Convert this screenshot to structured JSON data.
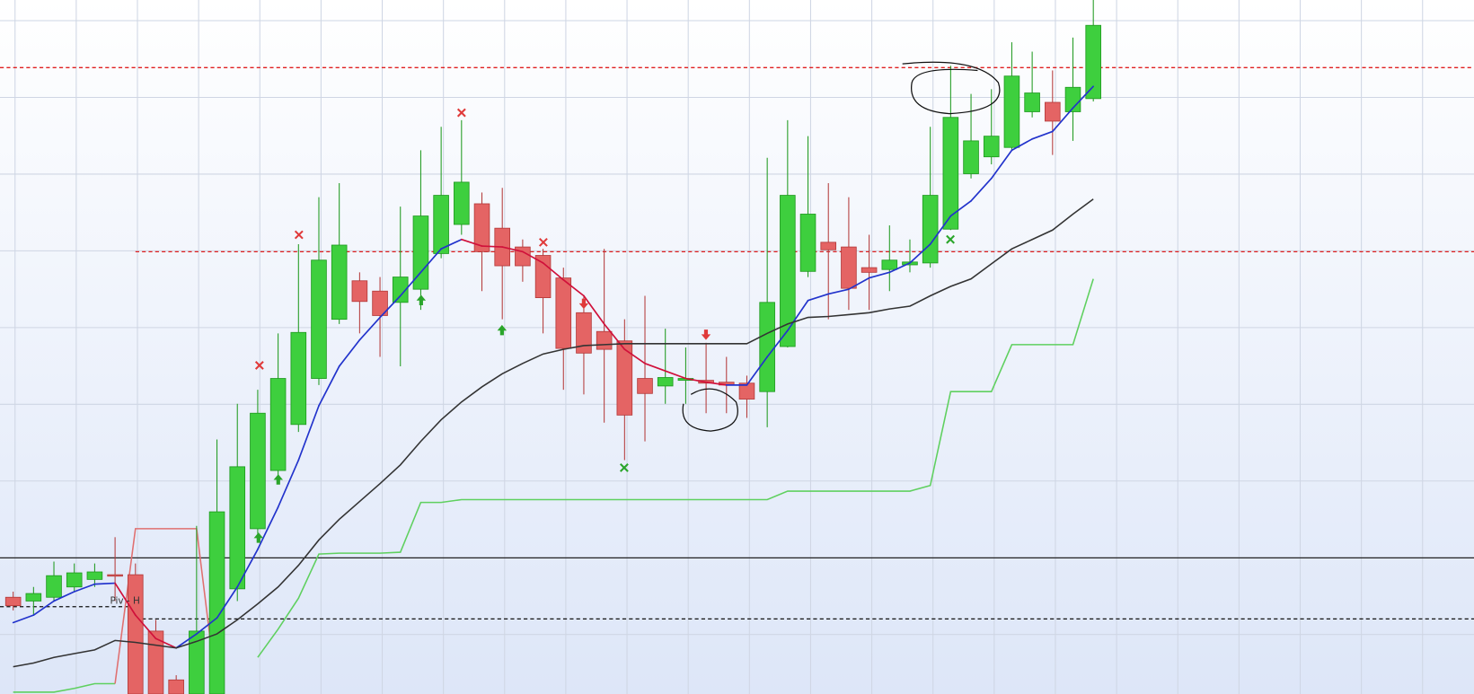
{
  "chart_data": {
    "type": "candlestick",
    "annotation": "Piv - H",
    "ylim": [
      0,
      739
    ],
    "up_color": "#3ecf3e",
    "up_edge": "#1f9a1f",
    "down_color": "#e46464",
    "down_edge": "#b43a3a",
    "grid": true,
    "open": [
      103,
      99,
      103,
      114,
      122,
      127,
      127,
      67,
      15,
      0,
      0,
      112,
      176,
      238,
      287,
      336,
      399,
      440,
      429,
      417,
      431,
      469,
      500,
      522,
      496,
      476,
      467,
      443,
      406,
      386,
      376,
      336,
      328,
      334,
      334,
      332,
      331,
      322,
      370,
      450,
      481,
      476,
      454,
      452,
      457,
      459,
      495,
      554,
      572,
      582,
      620,
      630,
      620,
      634
    ],
    "high": [
      109,
      114,
      141,
      139,
      139,
      167,
      139,
      79,
      20,
      179,
      271,
      309,
      324,
      384,
      479,
      529,
      544,
      449,
      444,
      519,
      579,
      604,
      611,
      534,
      539,
      484,
      474,
      454,
      424,
      474,
      399,
      424,
      389,
      369,
      374,
      359,
      339,
      571,
      611,
      594,
      544,
      529,
      489,
      499,
      484,
      604,
      669,
      639,
      644,
      694,
      684,
      664,
      699,
      739
    ],
    "low": [
      89,
      84,
      99,
      109,
      114,
      99,
      0,
      0,
      0,
      0,
      0,
      99,
      169,
      229,
      279,
      329,
      394,
      384,
      359,
      349,
      409,
      464,
      489,
      429,
      399,
      439,
      384,
      324,
      319,
      289,
      249,
      269,
      309,
      309,
      299,
      299,
      294,
      284,
      369,
      444,
      399,
      409,
      409,
      429,
      449,
      454,
      494,
      549,
      564,
      579,
      614,
      574,
      589,
      631
    ],
    "close": [
      94,
      107,
      126,
      129,
      130,
      126,
      0,
      0,
      0,
      67,
      194,
      242,
      299,
      336,
      385,
      462,
      478,
      418,
      403,
      444,
      509,
      531,
      545,
      471,
      456,
      456,
      422,
      368,
      363,
      367,
      297,
      320,
      337,
      336,
      331,
      329,
      314,
      417,
      531,
      511,
      473,
      432,
      449,
      462,
      460,
      531,
      614,
      589,
      594,
      658,
      640,
      610,
      646,
      712
    ],
    "lines": [
      {
        "color": "#2233cc",
        "fall_color": "#d0103a",
        "values": [
          76,
          84,
          99,
          109,
          117,
          118,
          84,
          59,
          49,
          64,
          81,
          114,
          154,
          199,
          249,
          307,
          349,
          377,
          401,
          424,
          449,
          474,
          484,
          477,
          476,
          471,
          459,
          441,
          424,
          394,
          367,
          352,
          344,
          336,
          332,
          329,
          329,
          359,
          387,
          419,
          426,
          431,
          443,
          449,
          459,
          479,
          509,
          525,
          549,
          579,
          591,
          599,
          624,
          647
        ]
      },
      {
        "color": "#333333",
        "values": [
          29,
          33,
          39,
          43,
          47,
          57,
          55,
          52,
          49,
          56,
          64,
          79,
          96,
          114,
          137,
          164,
          186,
          205,
          224,
          244,
          269,
          292,
          311,
          327,
          341,
          352,
          362,
          367,
          371,
          372,
          373,
          373,
          373,
          373,
          373,
          373,
          373,
          384,
          394,
          401,
          402,
          404,
          406,
          410,
          413,
          424,
          434,
          442,
          458,
          474,
          484,
          494,
          511,
          527
        ]
      },
      {
        "color": "#5fd05f",
        "step": true,
        "values": [
          2,
          2,
          2,
          6,
          11,
          11,
          null,
          null,
          null,
          null,
          null,
          null,
          39,
          69,
          102,
          149,
          150,
          150,
          150,
          151,
          204,
          204,
          207,
          207,
          207,
          207,
          207,
          207,
          207,
          207,
          207,
          207,
          207,
          207,
          207,
          207,
          207,
          207,
          216,
          216,
          216,
          216,
          216,
          216,
          216,
          222,
          322,
          322,
          322,
          372,
          372,
          372,
          372,
          442
        ]
      },
      {
        "color": "#e07070",
        "step": true,
        "values": [
          null,
          null,
          null,
          null,
          null,
          11,
          176,
          176,
          176,
          176,
          0,
          null,
          null,
          null,
          null,
          null,
          null,
          null,
          null,
          null,
          null,
          null,
          null,
          null,
          null,
          null,
          null,
          null,
          null,
          null,
          null,
          null,
          null,
          null,
          null,
          null,
          null,
          null,
          null,
          null,
          null,
          null,
          null,
          null,
          null,
          null,
          null,
          null,
          null,
          null,
          null,
          null,
          null,
          null
        ]
      }
    ],
    "levels": [
      {
        "value": 667,
        "color": "#e02020",
        "dash": true,
        "from": 0,
        "to": null
      },
      {
        "value": 471,
        "color": "#e02020",
        "dash": true,
        "from": 6,
        "to": null
      },
      {
        "value": 145,
        "color": "#222222",
        "dash": false,
        "from": 0,
        "to": null
      },
      {
        "value": 93,
        "color": "#111111",
        "dash": true,
        "from": 0,
        "to": 6
      },
      {
        "value": 80,
        "color": "#111111",
        "dash": true,
        "from": 6,
        "to": null
      }
    ]
  }
}
